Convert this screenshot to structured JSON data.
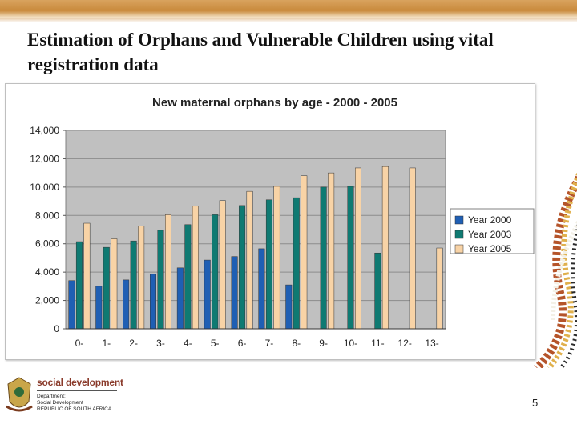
{
  "slide": {
    "title": "Estimation of Orphans and Vulnerable Children using vital registration data",
    "page_number": "5"
  },
  "footer": {
    "brand": "social development",
    "dept_lines": [
      "Department:",
      "Social Development",
      "REPUBLIC OF SOUTH AFRICA"
    ]
  },
  "colors": {
    "year2000": "#1f5fb4",
    "year2003": "#0f7a72",
    "year2005": "#f8d3a6",
    "plot_bg": "#c0c0c0",
    "top_band": "#c98a3c"
  },
  "chart_data": {
    "type": "bar",
    "title": "New maternal orphans by age - 2000 - 2005",
    "xlabel": "",
    "ylabel": "",
    "categories": [
      "0-",
      "1-",
      "2-",
      "3-",
      "4-",
      "5-",
      "6-",
      "7-",
      "8-",
      "9-",
      "10-",
      "11-",
      "12-",
      "13-"
    ],
    "series": [
      {
        "name": "Year 2000",
        "color": "#1f5fb4",
        "values": [
          3400,
          3000,
          3450,
          3850,
          4300,
          4850,
          5100,
          5650,
          3100,
          null,
          null,
          null,
          null,
          null
        ]
      },
      {
        "name": "Year 2003",
        "color": "#0f7a72",
        "values": [
          6150,
          5750,
          6200,
          6950,
          7350,
          8050,
          8700,
          9100,
          9250,
          10000,
          10050,
          5350,
          null,
          null
        ]
      },
      {
        "name": "Year 2005",
        "color": "#f8d3a6",
        "values": [
          7450,
          6350,
          7250,
          8050,
          8650,
          9050,
          9700,
          10050,
          10800,
          11000,
          11350,
          11450,
          11350,
          5700
        ]
      }
    ],
    "ylim": [
      0,
      14000
    ],
    "yticks": [
      "0",
      "2,000",
      "4,000",
      "6,000",
      "8,000",
      "10,000",
      "12,000",
      "14,000"
    ],
    "grid": true,
    "legend": "right"
  }
}
